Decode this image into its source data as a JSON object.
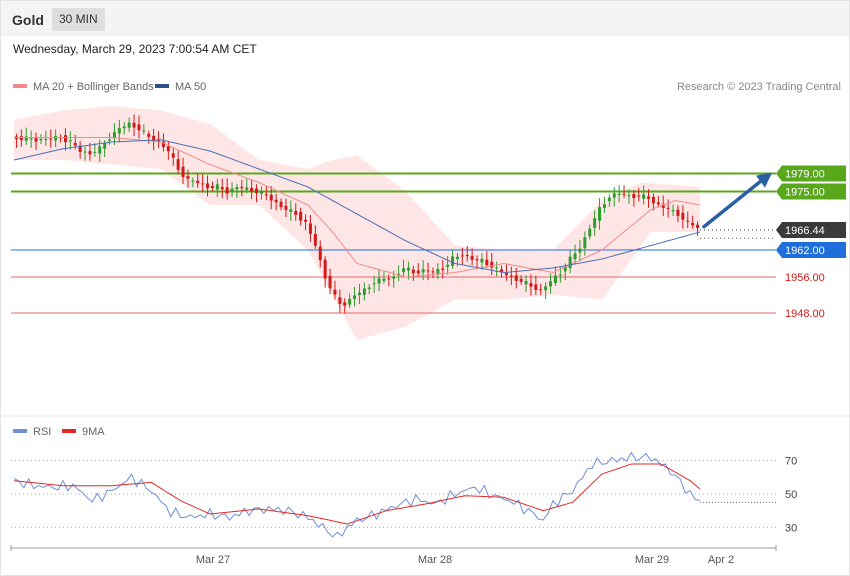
{
  "header": {
    "symbol": "Gold",
    "timeframe": "30 MIN"
  },
  "datetime": "Wednesday, March 29, 2023 7:00:54 AM CET",
  "copyright": "Research © 2023 Trading Central",
  "colors": {
    "bull": "#2e9c2e",
    "bear": "#d21a1a",
    "bb_fill": "#ffe2e2",
    "ma20": "#f08a8a",
    "ma50": "#4a6fb5",
    "resistance": "#59a81c",
    "support": "#1e6fd9",
    "support_red": "#e06a6a",
    "price_tag": "#3a3a3a",
    "arrow": "#2b5fa3",
    "rsi": "#6d8fd8",
    "rsi_ma": "#e02a2a"
  },
  "chart_data": [
    {
      "type": "candlestick",
      "legend": [
        "MA 20 + Bollinger Bands",
        "MA 50"
      ],
      "ylim": [
        1926,
        2002
      ],
      "x_labels": [
        "Mar 27",
        "Mar 28",
        "Mar 29",
        "Apr 2"
      ],
      "levels": [
        {
          "value": 1979.0,
          "label": "1979.00",
          "kind": "resistance"
        },
        {
          "value": 1975.0,
          "label": "1975.00",
          "kind": "resistance"
        },
        {
          "value": 1966.44,
          "label": "1966.44",
          "kind": "price"
        },
        {
          "value": 1962.0,
          "label": "1962.00",
          "kind": "support"
        },
        {
          "value": 1956.0,
          "label": "1956.00",
          "kind": "support_minor"
        },
        {
          "value": 1948.0,
          "label": "1948.00",
          "kind": "support_minor"
        }
      ],
      "anchors": [
        [
          0,
          1987
        ],
        [
          5,
          1986.5
        ],
        [
          10,
          1987
        ],
        [
          12,
          1986
        ],
        [
          14,
          1984
        ],
        [
          16,
          1983.5
        ],
        [
          18,
          1984.5
        ],
        [
          20,
          1987
        ],
        [
          22,
          1989
        ],
        [
          24,
          1990
        ],
        [
          26,
          1989
        ],
        [
          28,
          1987
        ],
        [
          30,
          1986
        ],
        [
          32,
          1984
        ],
        [
          34,
          1980
        ],
        [
          36,
          1977.5
        ],
        [
          38,
          1977
        ],
        [
          40,
          1976
        ],
        [
          42,
          1976
        ],
        [
          44,
          1975
        ],
        [
          46,
          1976
        ],
        [
          48,
          1975.5
        ],
        [
          50,
          1975
        ],
        [
          52,
          1974
        ],
        [
          54,
          1972.5
        ],
        [
          56,
          1971
        ],
        [
          58,
          1970
        ],
        [
          60,
          1968
        ],
        [
          62,
          1963
        ],
        [
          64,
          1956
        ],
        [
          66,
          1951.5
        ],
        [
          67,
          1950
        ],
        [
          68,
          1950
        ],
        [
          70,
          1952
        ],
        [
          72,
          1953
        ],
        [
          74,
          1955
        ],
        [
          76,
          1955.5
        ],
        [
          78,
          1956
        ],
        [
          80,
          1958
        ],
        [
          82,
          1957
        ],
        [
          84,
          1957.5
        ],
        [
          86,
          1957
        ],
        [
          88,
          1958
        ],
        [
          90,
          1960
        ],
        [
          92,
          1961
        ],
        [
          94,
          1960
        ],
        [
          96,
          1959.5
        ],
        [
          98,
          1958.5
        ],
        [
          100,
          1957
        ],
        [
          102,
          1956
        ],
        [
          104,
          1955
        ],
        [
          106,
          1954
        ],
        [
          108,
          1953
        ],
        [
          110,
          1955
        ],
        [
          112,
          1957
        ],
        [
          114,
          1960
        ],
        [
          116,
          1962.5
        ],
        [
          118,
          1967
        ],
        [
          120,
          1971
        ],
        [
          122,
          1974
        ],
        [
          124,
          1974.5
        ],
        [
          126,
          1974
        ],
        [
          128,
          1974
        ],
        [
          130,
          1973.5
        ],
        [
          132,
          1972
        ],
        [
          134,
          1971
        ],
        [
          136,
          1970
        ],
        [
          138,
          1968
        ],
        [
          140,
          1967
        ]
      ],
      "ma20": [
        [
          0,
          1987
        ],
        [
          10,
          1987
        ],
        [
          20,
          1987
        ],
        [
          30,
          1986
        ],
        [
          40,
          1981
        ],
        [
          50,
          1977
        ],
        [
          60,
          1972
        ],
        [
          65,
          1966
        ],
        [
          70,
          1959
        ],
        [
          80,
          1956
        ],
        [
          90,
          1957
        ],
        [
          100,
          1959
        ],
        [
          110,
          1957
        ],
        [
          120,
          1962
        ],
        [
          130,
          1971
        ],
        [
          135,
          1973
        ],
        [
          140,
          1972
        ]
      ],
      "bb_upper": [
        [
          0,
          1991
        ],
        [
          10,
          1993
        ],
        [
          20,
          1994
        ],
        [
          30,
          1993
        ],
        [
          40,
          1990
        ],
        [
          50,
          1982
        ],
        [
          60,
          1980
        ],
        [
          65,
          1982
        ],
        [
          70,
          1983
        ],
        [
          80,
          1975
        ],
        [
          90,
          1963
        ],
        [
          100,
          1962
        ],
        [
          110,
          1962
        ],
        [
          120,
          1973
        ],
        [
          128,
          1977
        ],
        [
          140,
          1976
        ]
      ],
      "bb_lower": [
        [
          0,
          1982
        ],
        [
          10,
          1982
        ],
        [
          20,
          1981
        ],
        [
          30,
          1980
        ],
        [
          40,
          1972
        ],
        [
          50,
          1972
        ],
        [
          60,
          1962
        ],
        [
          65,
          1952
        ],
        [
          70,
          1942
        ],
        [
          80,
          1945
        ],
        [
          90,
          1951
        ],
        [
          100,
          1951
        ],
        [
          110,
          1952
        ],
        [
          120,
          1951
        ],
        [
          130,
          1966
        ],
        [
          140,
          1966
        ]
      ],
      "ma50": [
        [
          0,
          1982
        ],
        [
          10,
          1984.5
        ],
        [
          20,
          1986
        ],
        [
          30,
          1986.5
        ],
        [
          40,
          1984
        ],
        [
          50,
          1980
        ],
        [
          60,
          1976
        ],
        [
          70,
          1970
        ],
        [
          80,
          1964
        ],
        [
          90,
          1959
        ],
        [
          100,
          1957
        ],
        [
          110,
          1958
        ],
        [
          120,
          1960
        ],
        [
          130,
          1963
        ],
        [
          140,
          1966
        ]
      ]
    },
    {
      "type": "line",
      "legend": [
        "RSI",
        "9MA"
      ],
      "ylim": [
        20,
        80
      ],
      "ticks": [
        70,
        50,
        30
      ],
      "series": [
        {
          "name": "RSI",
          "points": [
            [
              0,
              58
            ],
            [
              4,
              55
            ],
            [
              8,
              54
            ],
            [
              12,
              55
            ],
            [
              16,
              46
            ],
            [
              20,
              52
            ],
            [
              24,
              60
            ],
            [
              28,
              52
            ],
            [
              32,
              39
            ],
            [
              36,
              36
            ],
            [
              40,
              38
            ],
            [
              44,
              36
            ],
            [
              48,
              40
            ],
            [
              52,
              41
            ],
            [
              56,
              40
            ],
            [
              60,
              36
            ],
            [
              64,
              28
            ],
            [
              66,
              24
            ],
            [
              68,
              30
            ],
            [
              70,
              34
            ],
            [
              74,
              38
            ],
            [
              78,
              43
            ],
            [
              82,
              47
            ],
            [
              86,
              44
            ],
            [
              90,
              50
            ],
            [
              94,
              54
            ],
            [
              98,
              49
            ],
            [
              102,
              45
            ],
            [
              106,
              38
            ],
            [
              108,
              34
            ],
            [
              110,
              44
            ],
            [
              114,
              52
            ],
            [
              118,
              68
            ],
            [
              122,
              70
            ],
            [
              126,
              72
            ],
            [
              130,
              72
            ],
            [
              134,
              64
            ],
            [
              138,
              50
            ],
            [
              140,
              45
            ]
          ]
        },
        {
          "name": "9MA",
          "points": [
            [
              0,
              58
            ],
            [
              10,
              55
            ],
            [
              20,
              55
            ],
            [
              28,
              57
            ],
            [
              34,
              46
            ],
            [
              40,
              38
            ],
            [
              50,
              41
            ],
            [
              60,
              37
            ],
            [
              68,
              32
            ],
            [
              76,
              40
            ],
            [
              84,
              44
            ],
            [
              92,
              49
            ],
            [
              100,
              48
            ],
            [
              108,
              40
            ],
            [
              114,
              45
            ],
            [
              120,
              62
            ],
            [
              126,
              68
            ],
            [
              132,
              68
            ],
            [
              138,
              58
            ],
            [
              140,
              53
            ]
          ]
        }
      ]
    }
  ]
}
